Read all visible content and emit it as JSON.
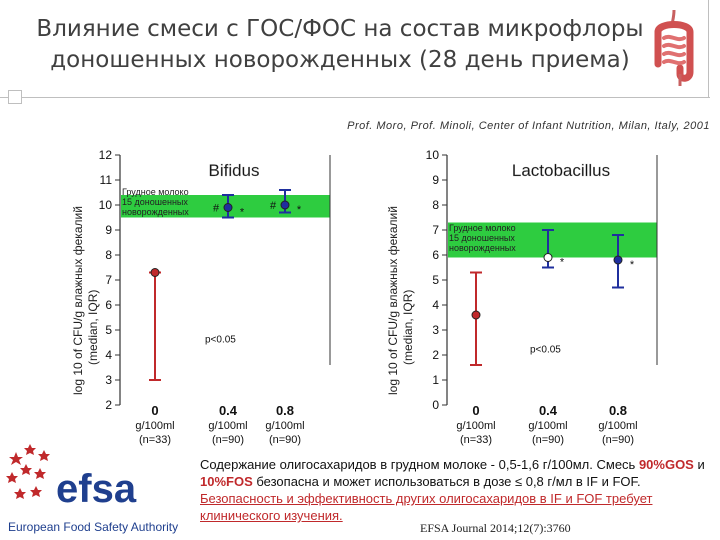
{
  "slide": {
    "title_line1": "Влияние смеси с ГОС/ФОС на состав микрофлоры",
    "title_line2": "доношенных новорожденных (28 день приема)",
    "authors": "Prof. Moro, Prof. Minoli, Center of Infant Nutrition, Milan, Italy, 2001"
  },
  "chart_data": [
    {
      "type": "scatter",
      "title": "Bifidus",
      "ylabel_line1": "log 10 of CFU/g влажных фекалий",
      "ylabel_line2": "(median, IQR)",
      "ylim": [
        2,
        12
      ],
      "yticks": [
        "2",
        "3",
        "4",
        "5",
        "6",
        "7",
        "8",
        "9",
        "10",
        "11",
        "12"
      ],
      "categories": [
        {
          "label": "0",
          "sub1": "g/100ml",
          "sub2": "(n=33)"
        },
        {
          "label": "0.4",
          "sub1": "g/100ml",
          "sub2": "(n=90)"
        },
        {
          "label": "0.8",
          "sub1": "g/100ml",
          "sub2": "(n=90)"
        }
      ],
      "reference_band": {
        "low": 9.5,
        "high": 10.4,
        "label_lines": [
          "Грудное молоко",
          "15 доношенных",
          "новорожденных"
        ]
      },
      "points": [
        {
          "category": 0,
          "median": 7.3,
          "q1": 3.0,
          "q3": 7.3,
          "color": "#c0292b",
          "fill": "#c0292b",
          "annotation": ""
        },
        {
          "category": 1,
          "median": 9.9,
          "q1": 9.5,
          "q3": 10.4,
          "color": "#1f2f9e",
          "fill": "#1f2f9e",
          "annotation": "#"
        },
        {
          "category": 2,
          "median": 10.0,
          "q1": 9.7,
          "q3": 10.6,
          "color": "#1f2f9e",
          "fill": "#1f2f9e",
          "annotation": "#"
        }
      ],
      "stars": [
        "*",
        "*"
      ],
      "pvalue": "p<0.05"
    },
    {
      "type": "scatter",
      "title": "Lactobacillus",
      "ylabel_line1": "log 10 of CFU/g влажных фекалий",
      "ylabel_line2": "(median, IQR)",
      "ylim": [
        0,
        10
      ],
      "yticks": [
        "0",
        "1",
        "2",
        "3",
        "4",
        "5",
        "6",
        "7",
        "8",
        "9",
        "10"
      ],
      "categories": [
        {
          "label": "0",
          "sub1": "g/100ml",
          "sub2": "(n=33)"
        },
        {
          "label": "0.4",
          "sub1": "g/100ml",
          "sub2": "(n=90)"
        },
        {
          "label": "0.8",
          "sub1": "g/100ml",
          "sub2": "(n=90)"
        }
      ],
      "reference_band": {
        "low": 5.9,
        "high": 7.3,
        "label_lines": [
          "Грудное молоко",
          "15 доношенных",
          "новорожденных"
        ]
      },
      "points": [
        {
          "category": 0,
          "median": 3.6,
          "q1": 1.6,
          "q3": 5.3,
          "color": "#c0292b",
          "fill": "#c0292b",
          "annotation": ""
        },
        {
          "category": 1,
          "median": 5.9,
          "q1": 5.5,
          "q3": 7.0,
          "color": "#1f2f9e",
          "fill": "#ffffff",
          "annotation": ""
        },
        {
          "category": 2,
          "median": 5.8,
          "q1": 4.7,
          "q3": 6.8,
          "color": "#1f2f9e",
          "fill": "#1f2f9e",
          "annotation": ""
        }
      ],
      "stars": [
        "*",
        "*"
      ],
      "pvalue": "p<0.05"
    }
  ],
  "efsa": {
    "wordmark": "efsa",
    "caption": "European Food Safety Authority"
  },
  "footnote": {
    "part1": "Содержание олигосахаридов в грудном молоке  - 0,5-1,6 г/100мл. Смесь ",
    "hl1": "90%GOS",
    "part2": " и ",
    "hl2": "10%FOS",
    "part3": " безопасна и может использоваться в дозе ≤ 0,8 г/мл в IF и FOF. ",
    "red": "Безопасность и эффективность других олигосахаридов в IF и FOF требует клинического изучения."
  },
  "journal": "EFSA Journal 2014;12(7):3760"
}
